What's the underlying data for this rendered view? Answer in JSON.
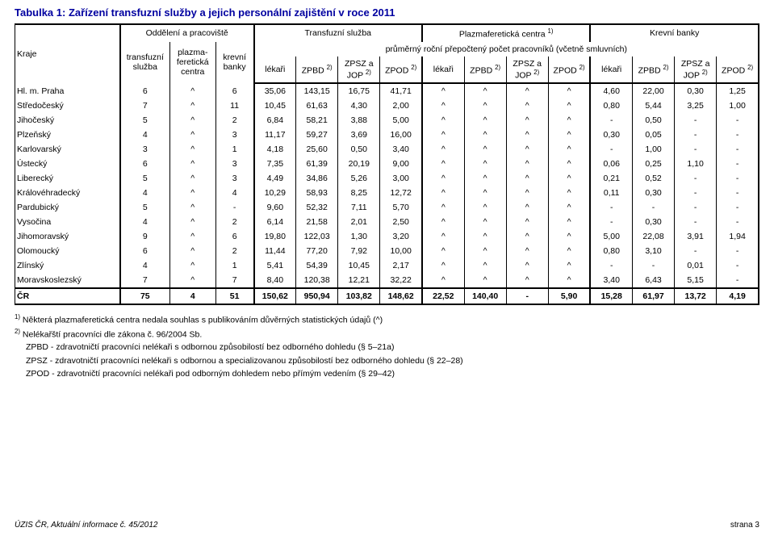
{
  "title": "Tabulka 1: Zařízení transfuzní služby a jejich personální zajištění v roce 2011",
  "headers": {
    "kraje": "Kraje",
    "odd": "Oddělení a pracoviště",
    "ts": "Transfuzní služba",
    "pc": "Plazmaferetická centra ",
    "pc_sup": "1)",
    "kb": "Krevní banky",
    "avg": "průměrný roční přepočtený počet pracovníků (včetně smluvních)",
    "sub_odd": [
      "transfuzní služba",
      "plazma­feretická centra",
      "krevní banky"
    ],
    "cols": [
      "lékaři",
      "ZPBD ",
      "ZPSZ a JOP ",
      "ZPOD "
    ],
    "sup2": "2)"
  },
  "rows": [
    {
      "name": "Hl. m. Praha",
      "odd": [
        "6",
        "^",
        "6"
      ],
      "ts": [
        "35,06",
        "143,15",
        "16,75",
        "41,71"
      ],
      "pc": [
        "^",
        "^",
        "^",
        "^"
      ],
      "kb": [
        "4,60",
        "22,00",
        "0,30",
        "1,25"
      ]
    },
    {
      "name": "Středočeský",
      "odd": [
        "7",
        "^",
        "11"
      ],
      "ts": [
        "10,45",
        "61,63",
        "4,30",
        "2,00"
      ],
      "pc": [
        "^",
        "^",
        "^",
        "^"
      ],
      "kb": [
        "0,80",
        "5,44",
        "3,25",
        "1,00"
      ]
    },
    {
      "name": "Jihočeský",
      "odd": [
        "5",
        "^",
        "2"
      ],
      "ts": [
        "6,84",
        "58,21",
        "3,88",
        "5,00"
      ],
      "pc": [
        "^",
        "^",
        "^",
        "^"
      ],
      "kb": [
        "-",
        "0,50",
        "-",
        "-"
      ]
    },
    {
      "name": "Plzeňský",
      "odd": [
        "4",
        "^",
        "3"
      ],
      "ts": [
        "11,17",
        "59,27",
        "3,69",
        "16,00"
      ],
      "pc": [
        "^",
        "^",
        "^",
        "^"
      ],
      "kb": [
        "0,30",
        "0,05",
        "-",
        "-"
      ]
    },
    {
      "name": "Karlovarský",
      "odd": [
        "3",
        "^",
        "1"
      ],
      "ts": [
        "4,18",
        "25,60",
        "0,50",
        "3,40"
      ],
      "pc": [
        "^",
        "^",
        "^",
        "^"
      ],
      "kb": [
        "-",
        "1,00",
        "-",
        "-"
      ]
    },
    {
      "name": "Ústecký",
      "odd": [
        "6",
        "^",
        "3"
      ],
      "ts": [
        "7,35",
        "61,39",
        "20,19",
        "9,00"
      ],
      "pc": [
        "^",
        "^",
        "^",
        "^"
      ],
      "kb": [
        "0,06",
        "0,25",
        "1,10",
        "-"
      ]
    },
    {
      "name": "Liberecký",
      "odd": [
        "5",
        "^",
        "3"
      ],
      "ts": [
        "4,49",
        "34,86",
        "5,26",
        "3,00"
      ],
      "pc": [
        "^",
        "^",
        "^",
        "^"
      ],
      "kb": [
        "0,21",
        "0,52",
        "-",
        "-"
      ]
    },
    {
      "name": "Královéhradecký",
      "odd": [
        "4",
        "^",
        "4"
      ],
      "ts": [
        "10,29",
        "58,93",
        "8,25",
        "12,72"
      ],
      "pc": [
        "^",
        "^",
        "^",
        "^"
      ],
      "kb": [
        "0,11",
        "0,30",
        "-",
        "-"
      ]
    },
    {
      "name": "Pardubický",
      "odd": [
        "5",
        "^",
        "-"
      ],
      "ts": [
        "9,60",
        "52,32",
        "7,11",
        "5,70"
      ],
      "pc": [
        "^",
        "^",
        "^",
        "^"
      ],
      "kb": [
        "-",
        "-",
        "-",
        "-"
      ]
    },
    {
      "name": "Vysočina",
      "odd": [
        "4",
        "^",
        "2"
      ],
      "ts": [
        "6,14",
        "21,58",
        "2,01",
        "2,50"
      ],
      "pc": [
        "^",
        "^",
        "^",
        "^"
      ],
      "kb": [
        "-",
        "0,30",
        "-",
        "-"
      ]
    },
    {
      "name": "Jihomoravský",
      "odd": [
        "9",
        "^",
        "6"
      ],
      "ts": [
        "19,80",
        "122,03",
        "1,30",
        "3,20"
      ],
      "pc": [
        "^",
        "^",
        "^",
        "^"
      ],
      "kb": [
        "5,00",
        "22,08",
        "3,91",
        "1,94"
      ]
    },
    {
      "name": "Olomoucký",
      "odd": [
        "6",
        "^",
        "2"
      ],
      "ts": [
        "11,44",
        "77,20",
        "7,92",
        "10,00"
      ],
      "pc": [
        "^",
        "^",
        "^",
        "^"
      ],
      "kb": [
        "0,80",
        "3,10",
        "-",
        "-"
      ]
    },
    {
      "name": "Zlínský",
      "odd": [
        "4",
        "^",
        "1"
      ],
      "ts": [
        "5,41",
        "54,39",
        "10,45",
        "2,17"
      ],
      "pc": [
        "^",
        "^",
        "^",
        "^"
      ],
      "kb": [
        "-",
        "-",
        "0,01",
        "-"
      ]
    },
    {
      "name": "Moravskoslezský",
      "odd": [
        "7",
        "^",
        "7"
      ],
      "ts": [
        "8,40",
        "120,38",
        "12,21",
        "32,22"
      ],
      "pc": [
        "^",
        "^",
        "^",
        "^"
      ],
      "kb": [
        "3,40",
        "6,43",
        "5,15",
        "-"
      ]
    }
  ],
  "total": {
    "name": "ČR",
    "odd": [
      "75",
      "4",
      "51"
    ],
    "ts": [
      "150,62",
      "950,94",
      "103,82",
      "148,62"
    ],
    "pc": [
      "22,52",
      "140,40",
      "-",
      "5,90"
    ],
    "kb": [
      "15,28",
      "61,97",
      "13,72",
      "4,19"
    ]
  },
  "footnotes": [
    "Některá plazmaferetická centra nedala souhlas s publikováním důvěrných statistických údajů (^)",
    "Nelékařští pracovníci dle zákona č. 96/2004 Sb.",
    "ZPBD - zdravotničtí pracovníci nelékaři s odbornou způsobilostí bez odborného dohledu (§ 5–21a)",
    "ZPSZ - zdravotničtí pracovníci nelékaři s odbornou a specializovanou způsobilostí bez odborného dohledu (§ 22–28)",
    "ZPOD - zdravotničtí pracovníci nelékaři pod odborným dohledem nebo přímým vedením (§ 29–42)"
  ],
  "footnote_sup": [
    "1)",
    "2)"
  ],
  "footer_left": "ÚZIS ČR, Aktuální informace č. 45/2012",
  "footer_right": "strana 3"
}
